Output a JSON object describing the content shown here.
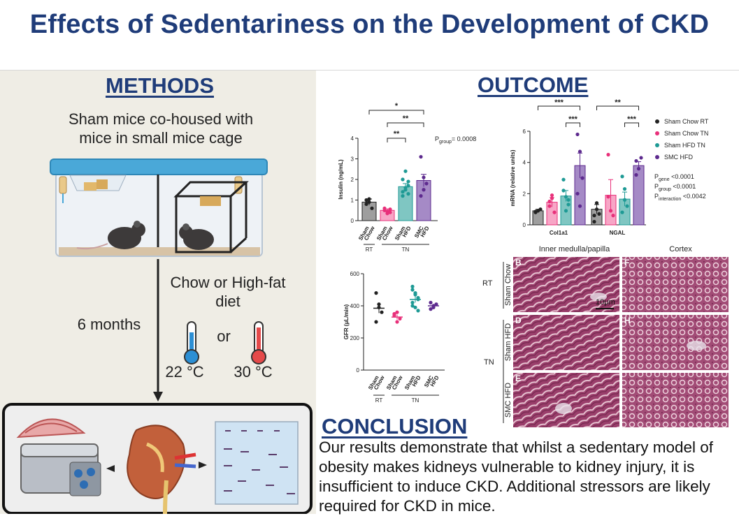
{
  "title": "Effects of Sedentariness on the Development of CKD",
  "methods": {
    "heading": "METHODS",
    "cage_text_line1": "Sham mice co-housed with",
    "cage_text_line2": "mice in small mice cage",
    "diet_line1": "Chow or High-fat",
    "diet_line2": "diet",
    "duration": "6 months",
    "or": "or",
    "temp_low": "22 °C",
    "temp_high": "30 °C"
  },
  "outcome": {
    "heading": "OUTCOME"
  },
  "conclusion": {
    "heading": "CONCLUSION",
    "text": "Our results demonstrate that whilst a sedentary model of obesity makes kidneys vulnerable to kidney injury, it is insufficient to induce CKD. Additional stressors are likely required for CKD in mice."
  },
  "colors": {
    "chow_rt": "#222222",
    "chow_tn": "#e8307a",
    "hfd_tn": "#1e9a95",
    "smc_hfd": "#5d2a8e",
    "title": "#1f3c79"
  },
  "chart_data": [
    {
      "type": "bar",
      "ylabel": "Insulin (ng/mL)",
      "ylim": [
        0,
        4
      ],
      "yticks": [
        "0",
        "1",
        "2",
        "3",
        "4"
      ],
      "categories": [
        "Sham Chow",
        "Sham Chow",
        "Sham HFD",
        "SMC HFD"
      ],
      "cat_lines": [
        [
          "Sham",
          "Chow"
        ],
        [
          "Sham",
          "Chow"
        ],
        [
          "Sham",
          "HFD"
        ],
        [
          "SMC",
          "HFD"
        ]
      ],
      "groups": [
        {
          "label": "RT",
          "span": [
            0,
            0
          ]
        },
        {
          "label": "TN",
          "span": [
            1,
            3
          ]
        }
      ],
      "values": [
        0.9,
        0.5,
        1.65,
        1.95
      ],
      "errors": [
        0.15,
        0.07,
        0.15,
        0.3
      ],
      "points": [
        [
          0.8,
          1.05,
          0.6,
          1.0,
          0.9
        ],
        [
          0.5,
          0.35,
          0.55,
          0.6,
          0.45,
          0.4
        ],
        [
          1.2,
          1.5,
          1.7,
          2.0,
          2.4,
          1.9,
          1.4,
          1.6,
          1.3
        ],
        [
          3.1,
          2.1,
          1.8,
          1.2,
          1.5
        ]
      ],
      "annotation": {
        "pre": "P",
        "sub": "group",
        "post": "= 0.0008"
      },
      "significance": [
        {
          "from": 0,
          "to": 3,
          "label": "*"
        },
        {
          "from": 1,
          "to": 3,
          "label": "**"
        },
        {
          "from": 1,
          "to": 2,
          "label": "**"
        }
      ]
    },
    {
      "type": "bar",
      "ylabel": "mRNA (relative units)",
      "ylim": [
        0,
        6
      ],
      "yticks": [
        "0",
        "2",
        "4",
        "6"
      ],
      "categories": [
        "Col1a1",
        "NGAL"
      ],
      "series": [
        {
          "name": "Sham Chow RT",
          "values": [
            0.9,
            1.0
          ],
          "errors": [
            0.1,
            0.3
          ],
          "points": [
            [
              0.85,
              0.9,
              1.0,
              0.8
            ],
            [
              0.6,
              1.4,
              0.7,
              0.2,
              1.0
            ]
          ]
        },
        {
          "name": "Sham Chow TN",
          "values": [
            1.45,
            1.9
          ],
          "errors": [
            0.3,
            1.0
          ],
          "points": [
            [
              1.5,
              1.9,
              0.8,
              1.2,
              1.7
            ],
            [
              4.5,
              0.9,
              0.6,
              1.8
            ]
          ]
        },
        {
          "name": "Sham HFD TN",
          "values": [
            1.85,
            1.65
          ],
          "errors": [
            0.35,
            0.45
          ],
          "points": [
            [
              2.9,
              1.8,
              1.6,
              2.2,
              0.9,
              1.3
            ],
            [
              3.1,
              2.3,
              1.2,
              0.8,
              1.6
            ]
          ]
        },
        {
          "name": "SMC HFD",
          "values": [
            3.8,
            3.8
          ],
          "errors": [
            0.8,
            0.25
          ],
          "points": [
            [
              5.8,
              4.7,
              3.0,
              2.0,
              1.2
            ],
            [
              4.1,
              3.6,
              4.3,
              3.2
            ]
          ]
        }
      ],
      "annotations": [
        {
          "pre": "P",
          "sub": "gene",
          "post": " <0.0001"
        },
        {
          "pre": "P",
          "sub": "group",
          "post": " <0.0001"
        },
        {
          "pre": "P",
          "sub": "interaction",
          "post": " <0.0042"
        }
      ],
      "significance": [
        {
          "cat": 0,
          "from": 0,
          "to": 3,
          "label": "***"
        },
        {
          "cat": 0,
          "from": 2,
          "to": 3,
          "label": "***"
        },
        {
          "cat": 1,
          "from": 0,
          "to": 3,
          "label": "**"
        },
        {
          "cat": 1,
          "from": 2,
          "to": 3,
          "label": "***"
        }
      ],
      "legend": "right"
    },
    {
      "type": "scatter",
      "ylabel": "GFR (µL/min)",
      "ylim": [
        0,
        600
      ],
      "yticks": [
        "0",
        "200",
        "400",
        "600"
      ],
      "categories": [
        "Sham Chow",
        "Sham Chow",
        "Sham HFD",
        "SMC HFD"
      ],
      "cat_lines": [
        [
          "Sham",
          "Chow"
        ],
        [
          "Sham",
          "Chow"
        ],
        [
          "Sham",
          "HFD"
        ],
        [
          "SMC",
          "HFD"
        ]
      ],
      "groups": [
        {
          "label": "RT",
          "span": [
            0,
            0
          ]
        },
        {
          "label": "TN",
          "span": [
            1,
            3
          ]
        }
      ],
      "means": [
        385,
        330,
        440,
        400
      ],
      "errors": [
        30,
        15,
        20,
        12
      ],
      "points": [
        [
          480,
          410,
          360,
          300,
          390
        ],
        [
          350,
          300,
          320,
          340,
          360
        ],
        [
          520,
          480,
          450,
          420,
          390,
          370,
          400,
          470,
          440,
          500
        ],
        [
          420,
          390,
          410,
          380,
          400
        ]
      ]
    }
  ],
  "histology": {
    "col_headers": [
      "Inner medulla/papilla",
      "Cortex"
    ],
    "row_labels": [
      "Sham Chow",
      "Sham HFD",
      "SMC HFD"
    ],
    "group_labels": [
      "RT",
      "TN"
    ],
    "panel_letters": [
      "B",
      "F",
      "D",
      "H",
      "E",
      ""
    ],
    "scale_bar": "10μm"
  }
}
